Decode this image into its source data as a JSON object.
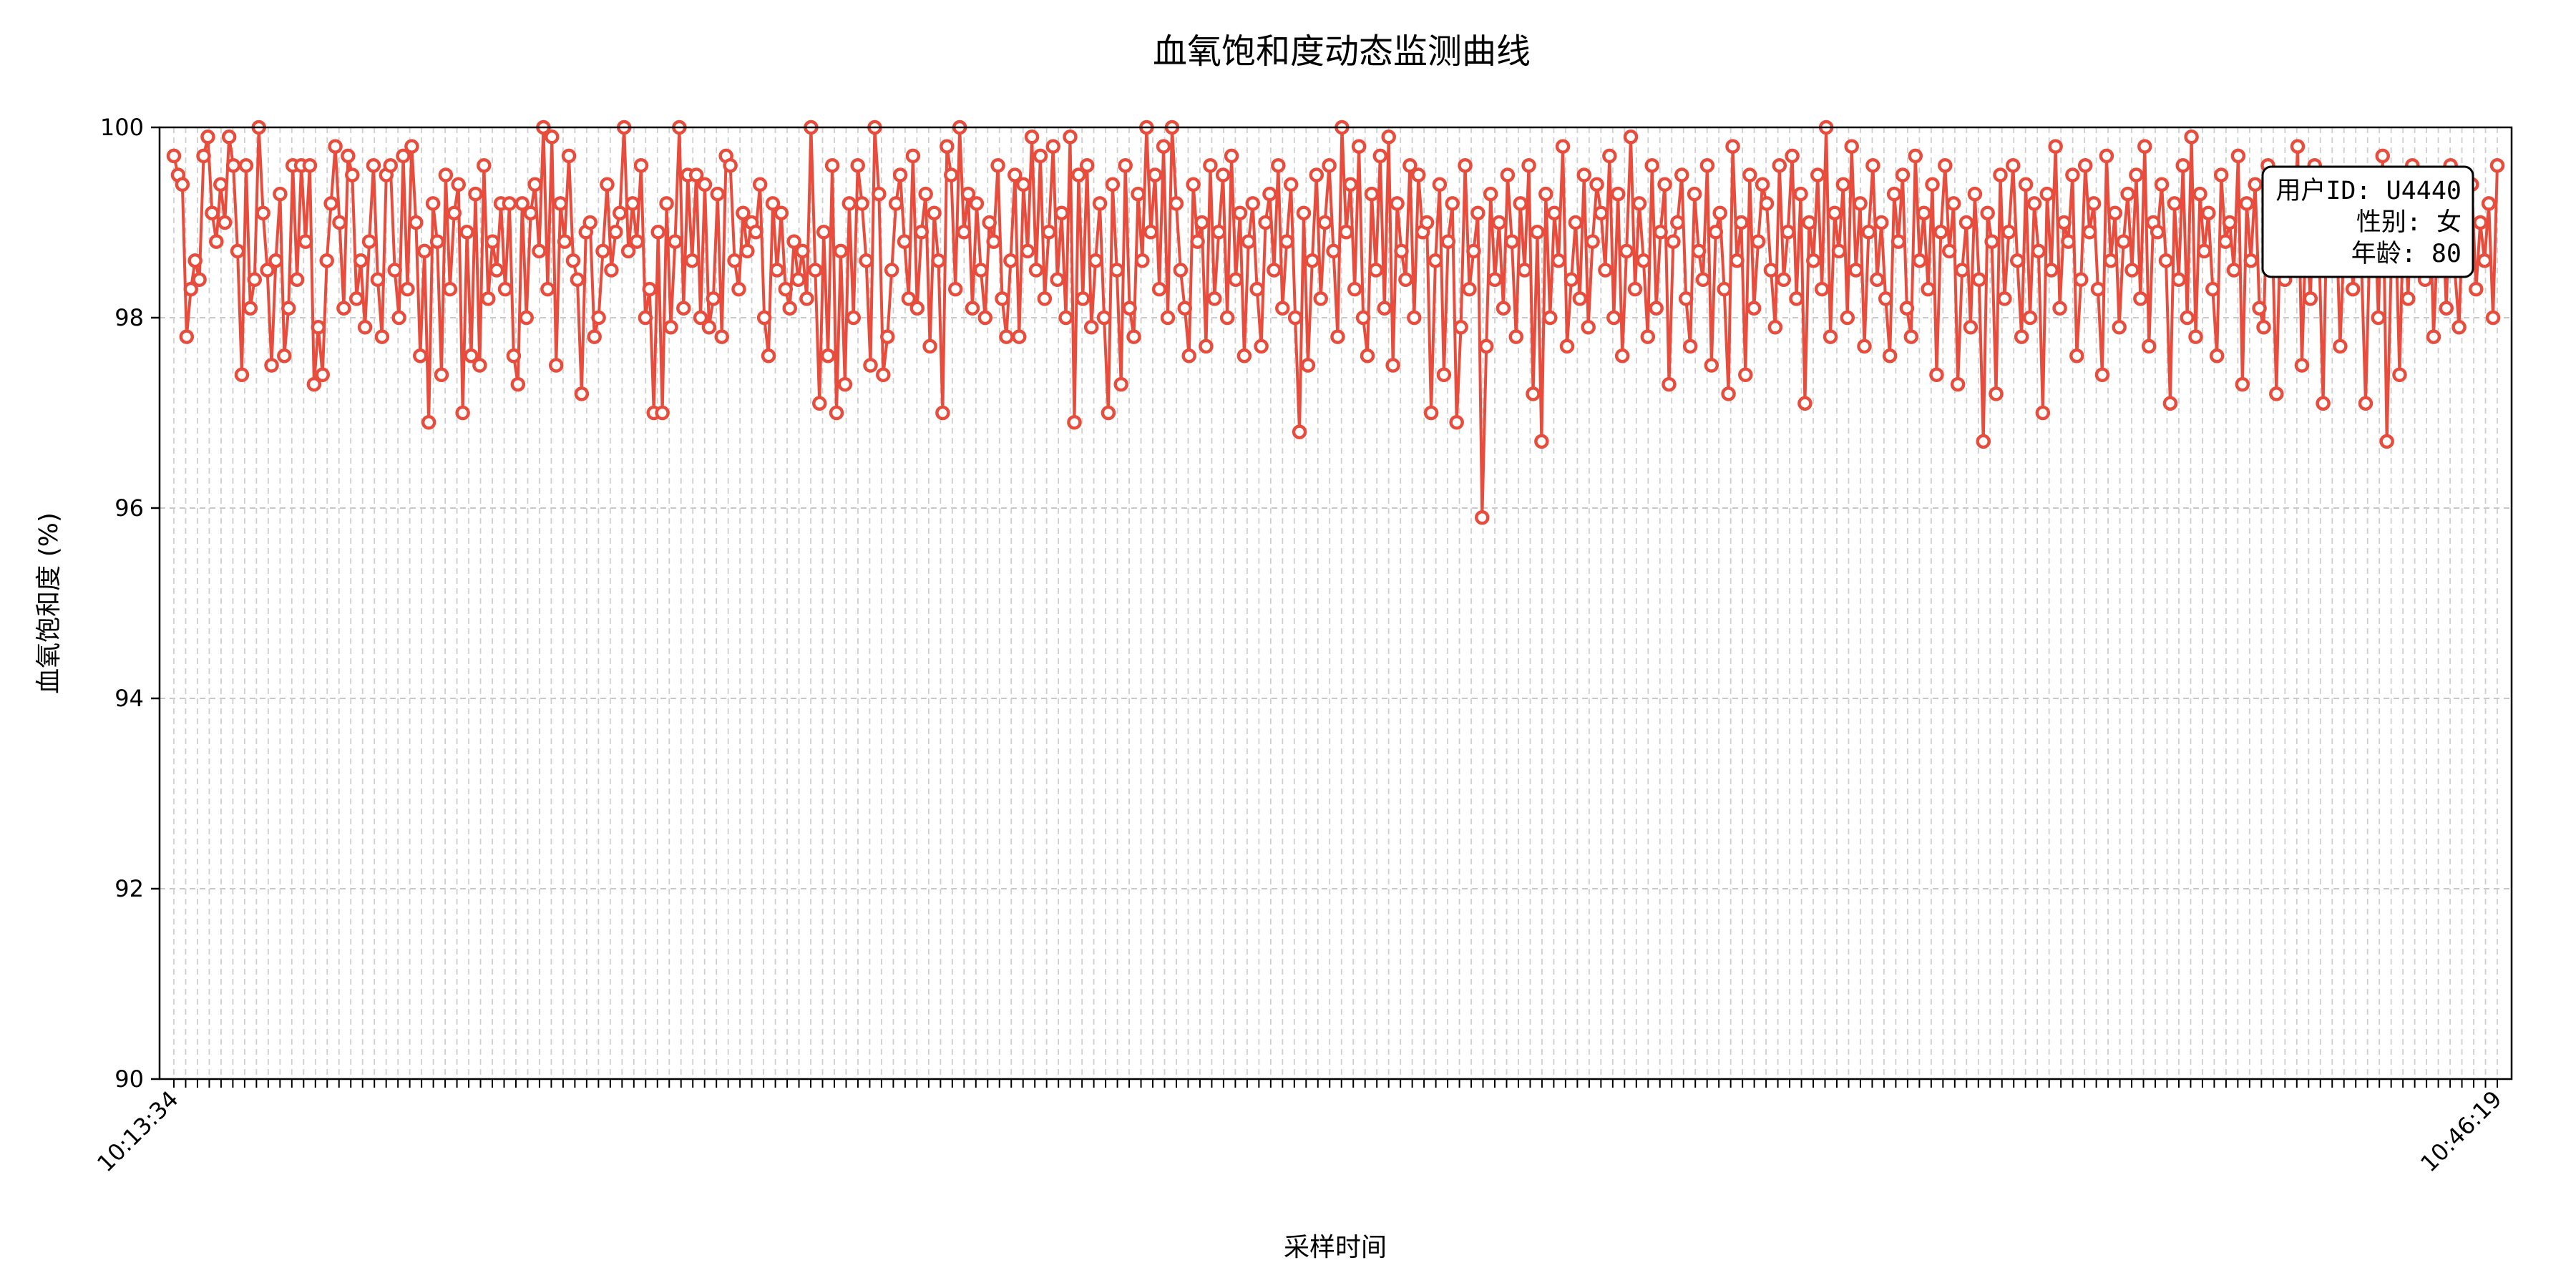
{
  "chart_data": {
    "type": "line",
    "title": "血氧饱和度动态监测曲线",
    "xlabel": "采样时间",
    "ylabel": "血氧饱和度 (%)",
    "ylim": [
      90,
      100
    ],
    "yticks": [
      90,
      92,
      94,
      96,
      98,
      100
    ],
    "grid": true,
    "x_start_time": "10:13:34",
    "x_end_time": "10:46:19",
    "tick_labels_visible": [
      "10:13:34",
      "10:46:19"
    ],
    "tick_label_rotation_deg": 45,
    "marker": "hollow-circle",
    "series": [
      {
        "color": "#e74c3c",
        "values": [
          99.7,
          99.5,
          99.4,
          97.8,
          98.3,
          98.6,
          98.4,
          99.7,
          99.9,
          99.1,
          98.8,
          99.4,
          99.0,
          99.9,
          99.6,
          98.7,
          97.4,
          99.6,
          98.1,
          98.4,
          100.0,
          99.1,
          98.5,
          97.5,
          98.6,
          99.3,
          97.6,
          98.1,
          99.6,
          98.4,
          99.6,
          98.8,
          99.6,
          97.3,
          97.9,
          97.4,
          98.6,
          99.2,
          99.8,
          99.0,
          98.1,
          99.7,
          99.5,
          98.2,
          98.6,
          97.9,
          98.8,
          99.6,
          98.4,
          97.8,
          99.5,
          99.6,
          98.5,
          98.0,
          99.7,
          98.3,
          99.8,
          99.0,
          97.6,
          98.7,
          96.9,
          99.2,
          98.8,
          97.4,
          99.5,
          98.3,
          99.1,
          99.4,
          97.0,
          98.9,
          97.6,
          99.3,
          97.5,
          99.6,
          98.2,
          98.8,
          98.5,
          99.2,
          98.3,
          99.2,
          97.6,
          97.3,
          99.2,
          98.0,
          99.1,
          99.4,
          98.7,
          100.0,
          98.3,
          99.9,
          97.5,
          99.2,
          98.8,
          99.7,
          98.6,
          98.4,
          97.2,
          98.9,
          99.0,
          97.8,
          98.0,
          98.7,
          99.4,
          98.5,
          98.9,
          99.1,
          100.0,
          98.7,
          99.2,
          98.8,
          99.6,
          98.0,
          98.3,
          97.0,
          98.9,
          97.0,
          99.2,
          97.9,
          98.8,
          100.0,
          98.1,
          99.5,
          98.6,
          99.5,
          98.0,
          99.4,
          97.9,
          98.2,
          99.3,
          97.8,
          99.7,
          99.6,
          98.6,
          98.3,
          99.1,
          98.7,
          99.0,
          98.9,
          99.4,
          98.0,
          97.6,
          99.2,
          98.5,
          99.1,
          98.3,
          98.1,
          98.8,
          98.4,
          98.7,
          98.2,
          100.0,
          98.5,
          97.1,
          98.9,
          97.6,
          99.6,
          97.0,
          98.7,
          97.3,
          99.2,
          98.0,
          99.6,
          99.2,
          98.6,
          97.5,
          100.0,
          99.3,
          97.4,
          97.8,
          98.5,
          99.2,
          99.5,
          98.8,
          98.2,
          99.7,
          98.1,
          98.9,
          99.3,
          97.7,
          99.1,
          98.6,
          97.0,
          99.8,
          99.5,
          98.3,
          100.0,
          98.9,
          99.3,
          98.1,
          99.2,
          98.5,
          98.0,
          99.0,
          98.8,
          99.6,
          98.2,
          97.8,
          98.6,
          99.5,
          97.8,
          99.4,
          98.7,
          99.9,
          98.5,
          99.7,
          98.2,
          98.9,
          99.8,
          98.4,
          99.1,
          98.0,
          99.9,
          96.9,
          99.5,
          98.2,
          99.6,
          97.9,
          98.6,
          99.2,
          98.0,
          97.0,
          99.4,
          98.5,
          97.3,
          99.6,
          98.1,
          97.8,
          99.3,
          98.6,
          100.0,
          98.9,
          99.5,
          98.3,
          99.8,
          98.0,
          100.0,
          99.2,
          98.5,
          98.1,
          97.6,
          99.4,
          98.8,
          99.0,
          97.7,
          99.6,
          98.2,
          98.9,
          99.5,
          98.0,
          99.7,
          98.4,
          99.1,
          97.6,
          98.8,
          99.2,
          98.3,
          97.7,
          99.0,
          99.3,
          98.5,
          99.6,
          98.1,
          98.8,
          99.4,
          98.0,
          96.8,
          99.1,
          97.5,
          98.6,
          99.5,
          98.2,
          99.0,
          99.6,
          98.7,
          97.8,
          100.0,
          98.9,
          99.4,
          98.3,
          99.8,
          98.0,
          97.6,
          99.3,
          98.5,
          99.7,
          98.1,
          99.9,
          97.5,
          99.2,
          98.7,
          98.4,
          99.6,
          98.0,
          99.5,
          98.9,
          99.0,
          97.0,
          98.6,
          99.4,
          97.4,
          98.8,
          99.2,
          96.9,
          97.9,
          99.6,
          98.3,
          98.7,
          99.1,
          95.9,
          97.7,
          99.3,
          98.4,
          99.0,
          98.1,
          99.5,
          98.8,
          97.8,
          99.2,
          98.5,
          99.6,
          97.2,
          98.9,
          96.7,
          99.3,
          98.0,
          99.1,
          98.6,
          99.8,
          97.7,
          98.4,
          99.0,
          98.2,
          99.5,
          97.9,
          98.8,
          99.4,
          99.1,
          98.5,
          99.7,
          98.0,
          99.3,
          97.6,
          98.7,
          99.9,
          98.3,
          99.2,
          98.6,
          97.8,
          99.6,
          98.1,
          98.9,
          99.4,
          97.3,
          98.8,
          99.0,
          99.5,
          98.2,
          97.7,
          99.3,
          98.7,
          98.4,
          99.6,
          97.5,
          98.9,
          99.1,
          98.3,
          97.2,
          99.8,
          98.6,
          99.0,
          97.4,
          99.5,
          98.1,
          98.8,
          99.4,
          99.2,
          98.5,
          97.9,
          99.6,
          98.4,
          98.9,
          99.7,
          98.2,
          99.3,
          97.1,
          99.0,
          98.6,
          99.5,
          98.3,
          100.0,
          97.8,
          99.1,
          98.7,
          99.4,
          98.0,
          99.8,
          98.5,
          99.2,
          97.7,
          98.9,
          99.6,
          98.4,
          99.0,
          98.2,
          97.6,
          99.3,
          98.8,
          99.5,
          98.1,
          97.8,
          99.7,
          98.6,
          99.1,
          98.3,
          99.4,
          97.4,
          98.9,
          99.6,
          98.7,
          99.2,
          97.3,
          98.5,
          99.0,
          97.9,
          99.3,
          98.4,
          96.7,
          99.1,
          98.8,
          97.2,
          99.5,
          98.2,
          98.9,
          99.6,
          98.6,
          97.8,
          99.4,
          98.0,
          99.2,
          98.7,
          97.0,
          99.3,
          98.5,
          99.8,
          98.1,
          99.0,
          98.8,
          99.5,
          97.6,
          98.4,
          99.6,
          98.9,
          99.2,
          98.3,
          97.4,
          99.7,
          98.6,
          99.1,
          97.9,
          98.8,
          99.3,
          98.5,
          99.5,
          98.2,
          99.8,
          97.7,
          99.0,
          98.9,
          99.4,
          98.6,
          97.1,
          99.2,
          98.4,
          99.6,
          98.0,
          99.9,
          97.8,
          99.3,
          98.7,
          99.1,
          98.3,
          97.6,
          99.5,
          98.8,
          99.0,
          98.5,
          99.7,
          97.3,
          99.2,
          98.6,
          99.4,
          98.1,
          97.9,
          99.6,
          98.9,
          97.2,
          99.1,
          98.4,
          99.3,
          98.7,
          99.8,
          97.5,
          99.0,
          98.2,
          99.6,
          98.8,
          97.1,
          99.4,
          98.5,
          99.2,
          97.7,
          98.9,
          99.5,
          98.3,
          99.0,
          98.6,
          97.1,
          98.8,
          99.4,
          98.0,
          99.7,
          96.7,
          98.5,
          99.1,
          97.4,
          99.3,
          98.2,
          99.6,
          98.7,
          99.0,
          98.4,
          99.5,
          97.8,
          98.9,
          99.2,
          98.1,
          99.6,
          98.5,
          97.9,
          99.3,
          98.8,
          99.4,
          98.3,
          99.0,
          98.6,
          99.2,
          98.0,
          99.6
        ]
      }
    ]
  },
  "info_box": {
    "user_id": "用户ID: U4440",
    "gender": "性别: 女",
    "age": "年龄: 80"
  }
}
